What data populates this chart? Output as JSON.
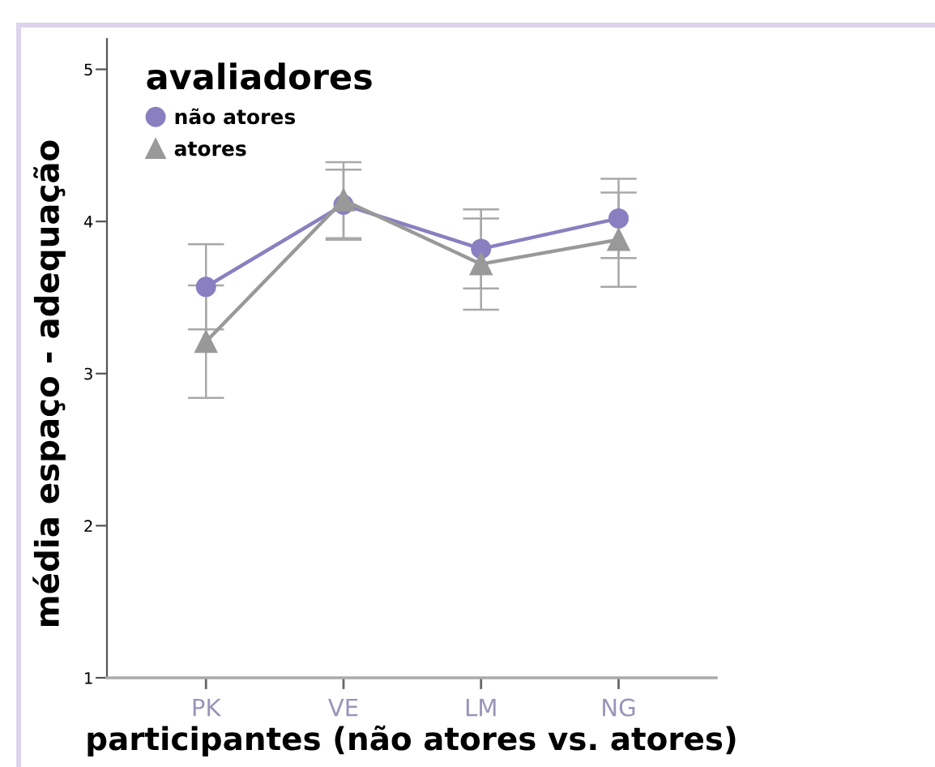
{
  "chart_data": {
    "type": "line",
    "xlabel": "participantes (não atores vs. atores)",
    "ylabel": "média espaço - adequação",
    "legend_title": "avaliadores",
    "categories": [
      "PK",
      "VE",
      "LM",
      "NG"
    ],
    "series": [
      {
        "name": "não atores",
        "color": "#8a7fc0",
        "marker": "circle",
        "values": [
          3.57,
          4.11,
          3.82,
          4.02
        ],
        "errors": [
          0.28,
          0.23,
          0.26,
          0.26
        ]
      },
      {
        "name": "atores",
        "color": "#999999",
        "marker": "triangle",
        "values": [
          3.21,
          4.14,
          3.72,
          3.88
        ],
        "errors": [
          0.37,
          0.25,
          0.3,
          0.31
        ]
      }
    ],
    "ylim": [
      1,
      5.2
    ],
    "yticks": [
      1,
      2,
      3,
      4,
      5
    ],
    "grid": false,
    "legend": "top left",
    "line_style": "solid"
  }
}
